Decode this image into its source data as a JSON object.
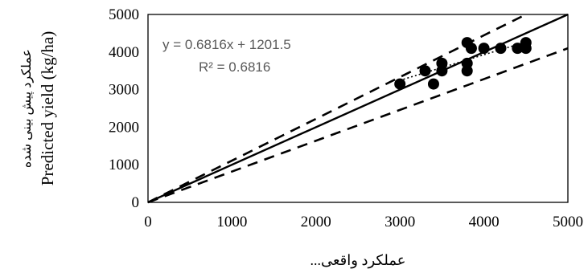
{
  "chart_data": {
    "type": "scatter",
    "xlim": [
      0,
      5000
    ],
    "ylim": [
      0,
      5000
    ],
    "x_ticks": [
      "0",
      "1000",
      "2000",
      "3000",
      "4000",
      "5000"
    ],
    "y_ticks": [
      "0",
      "1000",
      "2000",
      "3000",
      "4000",
      "5000"
    ],
    "xlabel": "...عملکرد واقعی",
    "ylabel_fa": "عملکرد پیش بینی شده",
    "ylabel_en": "Predicted yield (kg/ha)",
    "equation": "y = 0.6816x + 1201.5",
    "r_squared": "R² = 0.6816",
    "grid": false,
    "points": [
      {
        "x": 3000,
        "y": 3150
      },
      {
        "x": 3300,
        "y": 3500
      },
      {
        "x": 3400,
        "y": 3150
      },
      {
        "x": 3500,
        "y": 3500
      },
      {
        "x": 3500,
        "y": 3700
      },
      {
        "x": 3800,
        "y": 3500
      },
      {
        "x": 3800,
        "y": 3700
      },
      {
        "x": 3800,
        "y": 4250
      },
      {
        "x": 3850,
        "y": 4100
      },
      {
        "x": 4000,
        "y": 4100
      },
      {
        "x": 4200,
        "y": 4100
      },
      {
        "x": 4400,
        "y": 4100
      },
      {
        "x": 4500,
        "y": 4100
      },
      {
        "x": 4500,
        "y": 4250
      }
    ],
    "reference_lines": [
      {
        "name": "1:1",
        "style": "solid",
        "x": [
          0,
          5000
        ],
        "y": [
          0,
          5000
        ]
      },
      {
        "name": "upper",
        "style": "dashed",
        "x": [
          0,
          4500
        ],
        "y": [
          0,
          5000
        ]
      },
      {
        "name": "lower",
        "style": "dashed",
        "x": [
          0,
          5000
        ],
        "y": [
          0,
          4100
        ]
      }
    ],
    "trendline": {
      "style": "dotted",
      "slope": 0.6816,
      "intercept": 1201.5,
      "x": [
        2950,
        4550
      ]
    }
  }
}
